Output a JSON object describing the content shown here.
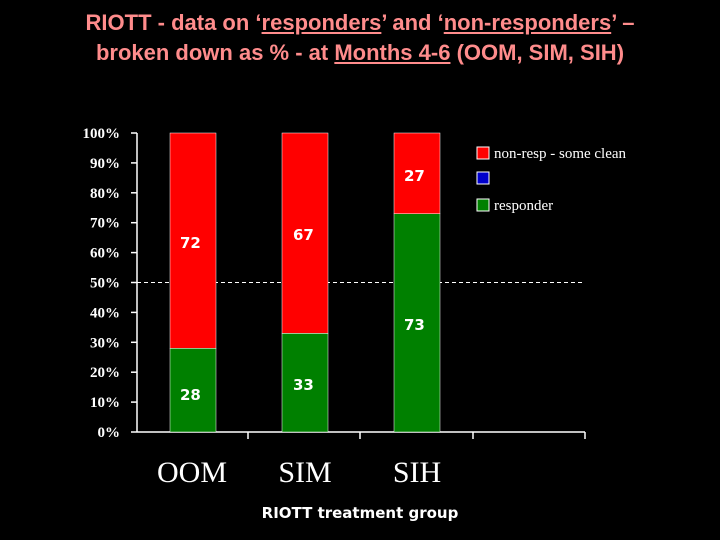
{
  "title": {
    "line1_prefix": "RIOTT - data on ‘",
    "line1_u1": "responders",
    "line1_mid": "’ and ‘",
    "line1_u2": "non-responders",
    "line1_suffix": "’ –",
    "line2_prefix": "broken down as % - at ",
    "line2_u": "Months 4-6",
    "line2_suffix": " (OOM, SIM, SIH)"
  },
  "colors": {
    "background": "#000000",
    "title": "#ff8c8c",
    "non_resp": "#ff0000",
    "responder": "#008000",
    "third_legend": "#0000cc",
    "axis": "#ffffff"
  },
  "chart_data": {
    "type": "bar",
    "stacked": true,
    "percent": true,
    "categories": [
      "OOM",
      "SIM",
      "SIH"
    ],
    "series": [
      {
        "name": "responder",
        "values": [
          28,
          33,
          73
        ],
        "labels": [
          "28",
          "33",
          "73"
        ]
      },
      {
        "name": "non-resp - some clean",
        "values": [
          72,
          67,
          27
        ],
        "labels": [
          "72",
          "67",
          "27"
        ]
      }
    ],
    "legend_entries": [
      "non-resp - some clean",
      "",
      "responder"
    ],
    "yticks": [
      "0%",
      "10%",
      "20%",
      "30%",
      "40%",
      "50%",
      "60%",
      "70%",
      "80%",
      "90%",
      "100%"
    ],
    "ylim": [
      0,
      100
    ],
    "reference_line": 50,
    "xlabel": "RIOTT treatment group",
    "ylabel": "",
    "legend_position": "top-right",
    "grid": false
  }
}
